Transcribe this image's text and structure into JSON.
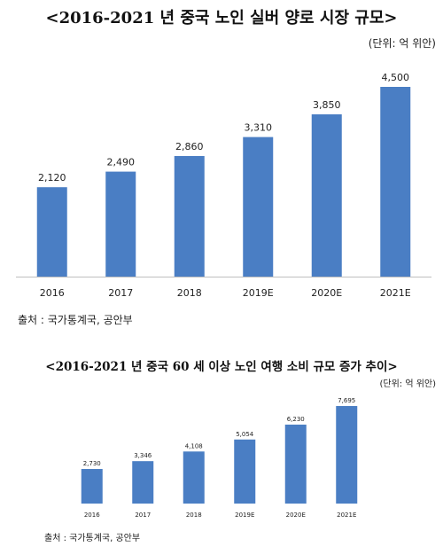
{
  "chart_data": [
    {
      "type": "bar",
      "title": "<2016-2021 년 중국 노인 실버 양로 시장 규모>",
      "unit": "(단위: 억 위안)",
      "categories": [
        "2016",
        "2017",
        "2018",
        "2019E",
        "2020E",
        "2021E"
      ],
      "values": [
        2120,
        2490,
        2860,
        3310,
        3850,
        4500
      ],
      "value_labels": [
        "2,120",
        "2,490",
        "2,860",
        "3,310",
        "3,850",
        "4,500"
      ],
      "source": "출처 : 국가통계국, 공안부",
      "color": "#4a7ec4",
      "ylim": [
        0,
        4500
      ]
    },
    {
      "type": "bar",
      "title": "<2016-2021 년 중국 60 세 이상 노인 여행 소비 규모 증가 추이>",
      "unit": "(단위: 억 위안)",
      "categories": [
        "2016",
        "2017",
        "2018",
        "2019E",
        "2020E",
        "2021E"
      ],
      "values": [
        2730,
        3346,
        4108,
        5054,
        6230,
        7695
      ],
      "value_labels": [
        "2,730",
        "3,346",
        "4,108",
        "5,054",
        "6,230",
        "7,695"
      ],
      "source": "출처 : 국가통계국, 공안부",
      "color": "#4a7ec4",
      "ylim": [
        0,
        7695
      ]
    }
  ]
}
